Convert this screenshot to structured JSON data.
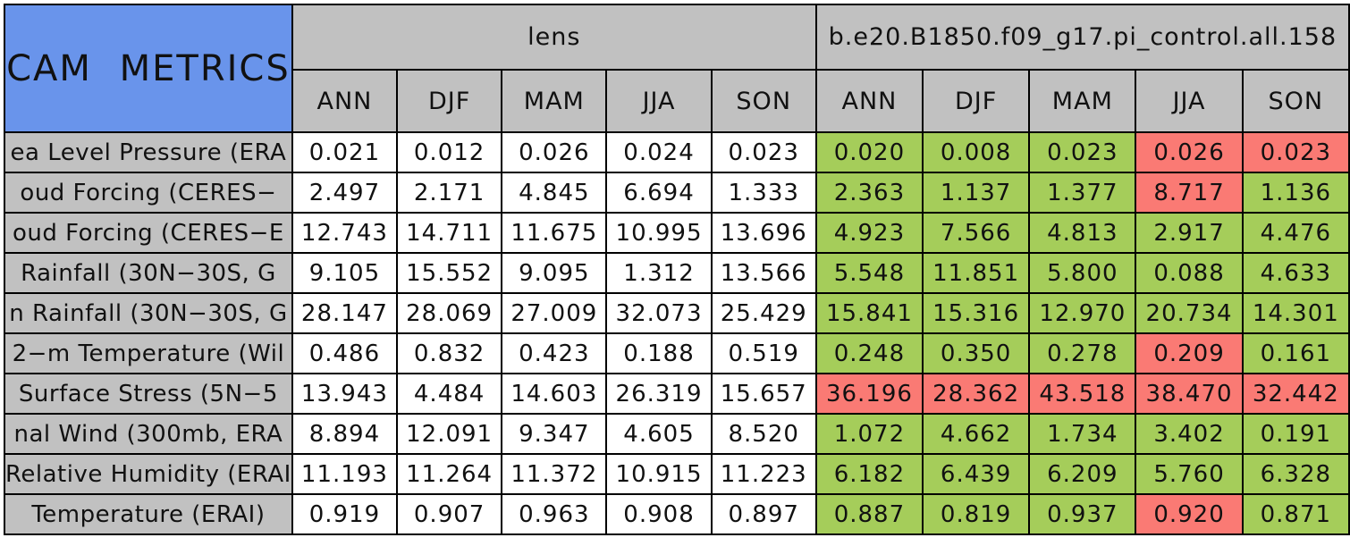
{
  "chart_data": {
    "type": "table",
    "title": "CAM METRICS",
    "column_groups": [
      {
        "label": "lens",
        "columns": [
          "ANN",
          "DJF",
          "MAM",
          "JJA",
          "SON"
        ]
      },
      {
        "label": "b.e20.B1850.f09_g17.pi_control.all.158",
        "columns": [
          "ANN",
          "DJF",
          "MAM",
          "JJA",
          "SON"
        ]
      }
    ],
    "colors": {
      "green": "#a5cd5a",
      "red": "#fa7a74",
      "white": "#ffffff",
      "header_bg": "#c1c1c1",
      "title_bg": "#6994eb"
    },
    "rows": [
      {
        "label": "ea Level Pressure (ERA",
        "lens": [
          "0.021",
          "0.012",
          "0.026",
          "0.024",
          "0.023"
        ],
        "control": {
          "values": [
            "0.020",
            "0.008",
            "0.023",
            "0.026",
            "0.023"
          ],
          "status": [
            "green",
            "green",
            "green",
            "red",
            "red"
          ]
        }
      },
      {
        "label": "oud Forcing (CERES−",
        "lens": [
          "2.497",
          "2.171",
          "4.845",
          "6.694",
          "1.333"
        ],
        "control": {
          "values": [
            "2.363",
            "1.137",
            "1.377",
            "8.717",
            "1.136"
          ],
          "status": [
            "green",
            "green",
            "green",
            "red",
            "green"
          ]
        }
      },
      {
        "label": "oud Forcing (CERES−E",
        "lens": [
          "12.743",
          "14.711",
          "11.675",
          "10.995",
          "13.696"
        ],
        "control": {
          "values": [
            "4.923",
            "7.566",
            "4.813",
            "2.917",
            "4.476"
          ],
          "status": [
            "green",
            "green",
            "green",
            "green",
            "green"
          ]
        }
      },
      {
        "label": "Rainfall (30N−30S, G",
        "lens": [
          "9.105",
          "15.552",
          "9.095",
          "1.312",
          "13.566"
        ],
        "control": {
          "values": [
            "5.548",
            "11.851",
            "5.800",
            "0.088",
            "4.633"
          ],
          "status": [
            "green",
            "green",
            "green",
            "green",
            "green"
          ]
        }
      },
      {
        "label": "n Rainfall (30N−30S, G",
        "lens": [
          "28.147",
          "28.069",
          "27.009",
          "32.073",
          "25.429"
        ],
        "control": {
          "values": [
            "15.841",
            "15.316",
            "12.970",
            "20.734",
            "14.301"
          ],
          "status": [
            "green",
            "green",
            "green",
            "green",
            "green"
          ]
        }
      },
      {
        "label": "2−m Temperature (Wil",
        "lens": [
          "0.486",
          "0.832",
          "0.423",
          "0.188",
          "0.519"
        ],
        "control": {
          "values": [
            "0.248",
            "0.350",
            "0.278",
            "0.209",
            "0.161"
          ],
          "status": [
            "green",
            "green",
            "green",
            "red",
            "green"
          ]
        }
      },
      {
        "label": "Surface Stress (5N−5",
        "lens": [
          "13.943",
          "4.484",
          "14.603",
          "26.319",
          "15.657"
        ],
        "control": {
          "values": [
            "36.196",
            "28.362",
            "43.518",
            "38.470",
            "32.442"
          ],
          "status": [
            "red",
            "red",
            "red",
            "red",
            "red"
          ]
        }
      },
      {
        "label": "nal Wind (300mb, ERA",
        "lens": [
          "8.894",
          "12.091",
          "9.347",
          "4.605",
          "8.520"
        ],
        "control": {
          "values": [
            "1.072",
            "4.662",
            "1.734",
            "3.402",
            "0.191"
          ],
          "status": [
            "green",
            "green",
            "green",
            "green",
            "green"
          ]
        }
      },
      {
        "label": "Relative Humidity (ERAI",
        "lens": [
          "11.193",
          "11.264",
          "11.372",
          "10.915",
          "11.223"
        ],
        "control": {
          "values": [
            "6.182",
            "6.439",
            "6.209",
            "5.760",
            "6.328"
          ],
          "status": [
            "green",
            "green",
            "green",
            "green",
            "green"
          ]
        }
      },
      {
        "label": "Temperature (ERAI)",
        "lens": [
          "0.919",
          "0.907",
          "0.963",
          "0.908",
          "0.897"
        ],
        "control": {
          "values": [
            "0.887",
            "0.819",
            "0.937",
            "0.920",
            "0.871"
          ],
          "status": [
            "green",
            "green",
            "green",
            "red",
            "green"
          ]
        }
      }
    ]
  }
}
